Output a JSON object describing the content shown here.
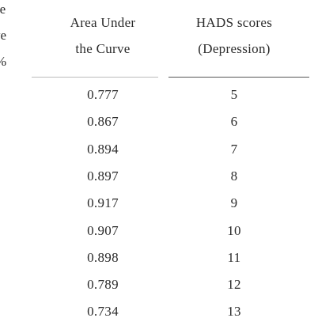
{
  "table": {
    "header": [
      [
        "re",
        "ve",
        "%"
      ],
      [
        "Area Under",
        "the Curve"
      ],
      [
        "HADS scores",
        "(Depression)"
      ]
    ],
    "rows": [
      [
        "0.777",
        "5"
      ],
      [
        "0.867",
        "6"
      ],
      [
        "0.894",
        "7"
      ],
      [
        "0.897",
        "8"
      ],
      [
        "0.917",
        "9"
      ],
      [
        "0.907",
        "10"
      ],
      [
        "0.898",
        "11"
      ],
      [
        "0.789",
        "12"
      ],
      [
        "0.734",
        "13"
      ]
    ]
  }
}
